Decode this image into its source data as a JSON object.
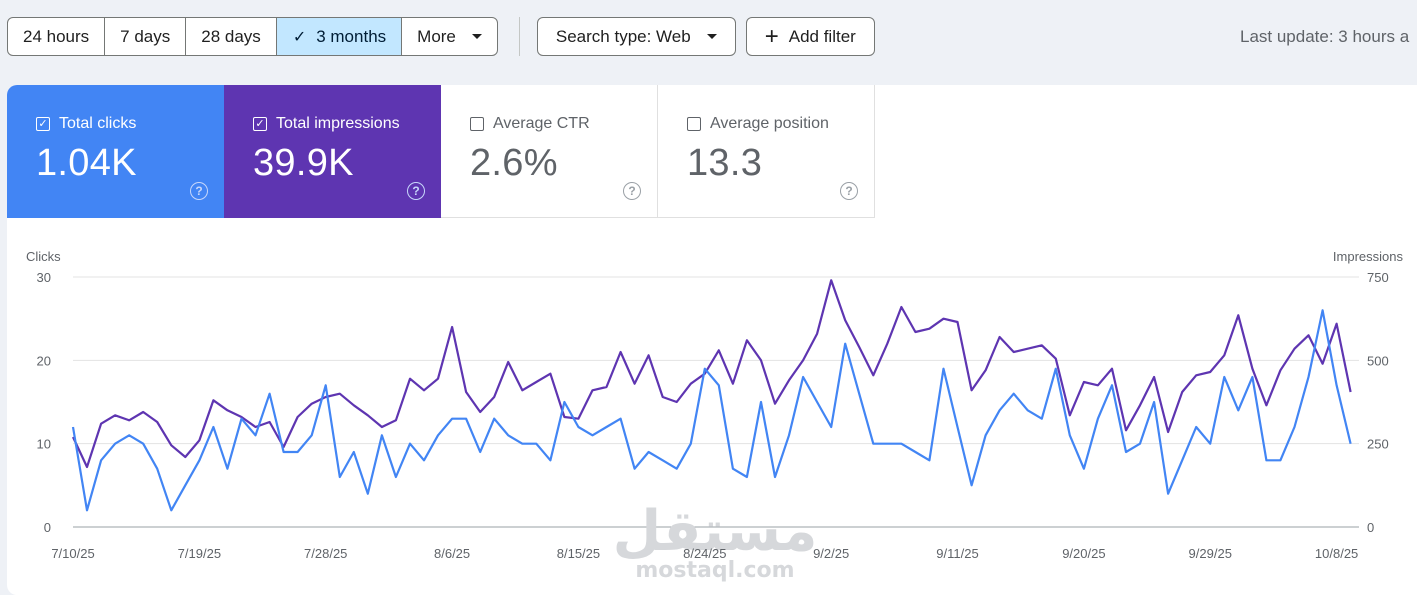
{
  "toolbar": {
    "ranges": [
      {
        "label": "24 hours",
        "active": false
      },
      {
        "label": "7 days",
        "active": false
      },
      {
        "label": "28 days",
        "active": false
      },
      {
        "label": "3 months",
        "active": true
      },
      {
        "label": "More",
        "active": false
      }
    ],
    "search_type": "Search type: Web",
    "add_filter": "Add filter",
    "last_update": "Last update: 3 hours a"
  },
  "metrics": [
    {
      "label": "Total clicks",
      "value": "1.04K",
      "checked": true
    },
    {
      "label": "Total impressions",
      "value": "39.9K",
      "checked": true
    },
    {
      "label": "Average CTR",
      "value": "2.6%",
      "checked": false
    },
    {
      "label": "Average position",
      "value": "13.3",
      "checked": false
    }
  ],
  "colors": {
    "clicks": "#4285f4",
    "impressions": "#5e35b1"
  },
  "watermark": {
    "arabic": "مستقل",
    "text": "mostaql.com"
  },
  "chart_data": {
    "type": "line",
    "left_axis_label": "Clicks",
    "right_axis_label": "Impressions",
    "left_ylim": [
      0,
      30
    ],
    "right_ylim": [
      0,
      750
    ],
    "left_ticks": [
      "30",
      "20",
      "10",
      "0"
    ],
    "right_ticks": [
      "750",
      "500",
      "250",
      "0"
    ],
    "x_ticks": [
      "7/10/25",
      "7/19/25",
      "7/28/25",
      "8/6/25",
      "8/15/25",
      "8/24/25",
      "9/2/25",
      "9/11/25",
      "9/20/25",
      "9/29/25",
      "10/8/25"
    ],
    "grid": true,
    "series": [
      {
        "name": "Clicks",
        "color": "#4285f4",
        "axis": "left",
        "values": [
          12,
          2,
          8,
          10,
          11,
          10,
          7,
          2,
          5,
          8,
          12,
          7,
          13,
          11,
          16,
          9,
          9,
          11,
          17,
          6,
          9,
          4,
          11,
          6,
          10,
          8,
          11,
          13,
          13,
          9,
          13,
          11,
          10,
          10,
          8,
          15,
          12,
          11,
          12,
          13,
          7,
          9,
          8,
          7,
          10,
          19,
          17,
          7,
          6,
          15,
          6,
          11,
          18,
          15,
          12,
          22,
          16,
          10,
          10,
          10,
          9,
          8,
          19,
          12,
          5,
          11,
          14,
          16,
          14,
          13,
          19,
          11,
          7,
          13,
          17,
          9,
          10,
          15,
          4,
          8,
          12,
          10,
          18,
          14,
          18,
          8,
          8,
          12,
          18,
          26,
          17,
          10
        ]
      },
      {
        "name": "Impressions",
        "color": "#5e35b1",
        "axis": "right",
        "values": [
          270,
          180,
          310,
          335,
          320,
          345,
          315,
          245,
          210,
          260,
          380,
          350,
          330,
          300,
          315,
          240,
          330,
          370,
          390,
          400,
          365,
          335,
          300,
          320,
          445,
          410,
          445,
          600,
          405,
          345,
          390,
          495,
          410,
          435,
          460,
          330,
          325,
          410,
          420,
          525,
          430,
          515,
          390,
          375,
          430,
          460,
          530,
          430,
          560,
          500,
          370,
          440,
          500,
          580,
          740,
          620,
          540,
          455,
          550,
          660,
          585,
          595,
          625,
          615,
          410,
          470,
          570,
          525,
          535,
          545,
          505,
          335,
          435,
          425,
          475,
          290,
          365,
          450,
          285,
          405,
          455,
          465,
          515,
          635,
          475,
          365,
          470,
          535,
          575,
          490,
          610,
          405
        ]
      }
    ]
  }
}
